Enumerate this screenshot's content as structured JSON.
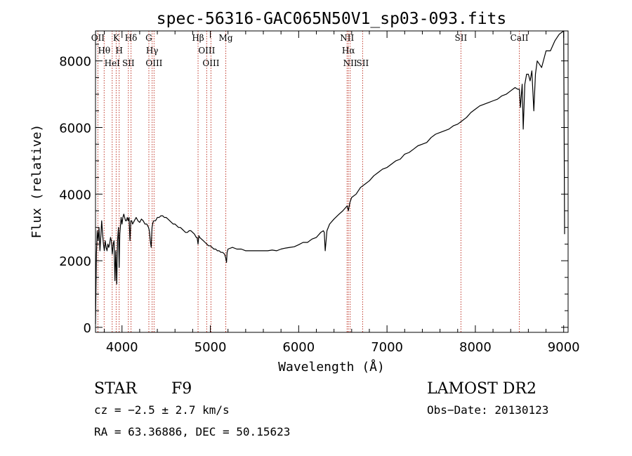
{
  "chart_data": {
    "type": "line",
    "title": "spec-56316-GAC065N50V1_sp03-093.fits",
    "xlabel": "Wavelength (Å)",
    "ylabel": "Flux (relative)",
    "xlim": [
      3700,
      9050
    ],
    "ylim": [
      -150,
      8900
    ],
    "x_ticks": [
      {
        "value": 4000,
        "label": "4000"
      },
      {
        "value": 5000,
        "label": "5000"
      },
      {
        "value": 6000,
        "label": "6000"
      },
      {
        "value": 7000,
        "label": "7000"
      },
      {
        "value": 8000,
        "label": "8000"
      },
      {
        "value": 9000,
        "label": "9000"
      }
    ],
    "y_ticks": [
      {
        "value": 0,
        "label": "0"
      },
      {
        "value": 2000,
        "label": "2000"
      },
      {
        "value": 4000,
        "label": "4000"
      },
      {
        "value": 6000,
        "label": "6000"
      },
      {
        "value": 8000,
        "label": "8000"
      }
    ],
    "series": [
      {
        "x": [
          3700,
          3710,
          3720,
          3730,
          3740,
          3750,
          3760,
          3770,
          3780,
          3790,
          3800,
          3810,
          3820,
          3830,
          3840,
          3850,
          3860,
          3870,
          3880,
          3890,
          3900,
          3910,
          3920,
          3930,
          3935,
          3940,
          3950,
          3960,
          3968,
          3975,
          3990,
          4000,
          4010,
          4020,
          4030,
          4040,
          4050,
          4060,
          4070,
          4080,
          4090,
          4100,
          4110,
          4120,
          4140,
          4160,
          4180,
          4200,
          4220,
          4240,
          4260,
          4280,
          4300,
          4310,
          4320,
          4330,
          4340,
          4350,
          4360,
          4380,
          4400,
          4420,
          4440,
          4460,
          4480,
          4500,
          4520,
          4540,
          4560,
          4580,
          4600,
          4620,
          4640,
          4660,
          4680,
          4700,
          4720,
          4740,
          4760,
          4780,
          4800,
          4820,
          4840,
          4850,
          4861,
          4870,
          4880,
          4900,
          4920,
          4940,
          4960,
          4980,
          5000,
          5020,
          5040,
          5060,
          5080,
          5100,
          5120,
          5140,
          5160,
          5172,
          5183,
          5190,
          5200,
          5250,
          5300,
          5350,
          5400,
          5450,
          5500,
          5550,
          5600,
          5650,
          5700,
          5750,
          5800,
          5850,
          5900,
          5950,
          6000,
          6050,
          6100,
          6150,
          6200,
          6250,
          6280,
          6290,
          6300,
          6320,
          6350,
          6400,
          6450,
          6500,
          6550,
          6563,
          6580,
          6600,
          6650,
          6700,
          6750,
          6800,
          6850,
          6900,
          6950,
          7000,
          7050,
          7100,
          7150,
          7200,
          7250,
          7300,
          7350,
          7400,
          7450,
          7500,
          7550,
          7600,
          7650,
          7700,
          7750,
          7800,
          7850,
          7900,
          7950,
          8000,
          8050,
          8100,
          8150,
          8200,
          8250,
          8300,
          8350,
          8400,
          8450,
          8480,
          8498,
          8510,
          8530,
          8542,
          8560,
          8580,
          8600,
          8620,
          8640,
          8662,
          8680,
          8700,
          8750,
          8800,
          8850,
          8900,
          8950,
          9000,
          9010
        ],
        "y": [
          100,
          2200,
          2900,
          2600,
          3000,
          2300,
          2700,
          3200,
          2800,
          2500,
          2300,
          2600,
          2400,
          2300,
          2500,
          2400,
          2500,
          2700,
          2600,
          2200,
          2500,
          2600,
          1400,
          2300,
          1800,
          1300,
          2600,
          3000,
          1800,
          2800,
          3300,
          3100,
          3300,
          3400,
          3300,
          3200,
          3200,
          3300,
          3200,
          3300,
          2600,
          3200,
          3200,
          3100,
          3200,
          3300,
          3200,
          3150,
          3250,
          3200,
          3100,
          3100,
          3000,
          2900,
          2600,
          2400,
          3000,
          3150,
          3200,
          3200,
          3300,
          3300,
          3350,
          3350,
          3300,
          3300,
          3250,
          3200,
          3150,
          3100,
          3100,
          3050,
          3000,
          3000,
          2950,
          2900,
          2850,
          2850,
          2900,
          2900,
          2850,
          2800,
          2700,
          2700,
          2500,
          2750,
          2700,
          2650,
          2600,
          2550,
          2500,
          2450,
          2450,
          2400,
          2350,
          2350,
          2300,
          2300,
          2250,
          2250,
          2200,
          2100,
          1950,
          2250,
          2350,
          2400,
          2350,
          2350,
          2300,
          2300,
          2300,
          2300,
          2300,
          2300,
          2320,
          2300,
          2350,
          2380,
          2400,
          2420,
          2480,
          2550,
          2550,
          2650,
          2700,
          2850,
          2900,
          2850,
          2300,
          2900,
          3100,
          3250,
          3380,
          3500,
          3650,
          3500,
          3750,
          3900,
          4000,
          4200,
          4300,
          4400,
          4550,
          4650,
          4750,
          4800,
          4900,
          5000,
          5050,
          5200,
          5250,
          5350,
          5450,
          5500,
          5550,
          5700,
          5800,
          5850,
          5900,
          5950,
          6050,
          6100,
          6200,
          6300,
          6450,
          6550,
          6650,
          6700,
          6750,
          6800,
          6850,
          6950,
          7000,
          7100,
          7200,
          7150,
          7150,
          6600,
          7300,
          5950,
          7300,
          7600,
          7600,
          7400,
          7700,
          6500,
          7600,
          8000,
          7800,
          8300,
          8300,
          8600,
          8800,
          8900,
          2800
        ]
      }
    ],
    "line_markers": [
      {
        "wavelength": 3727,
        "label": "OII"
      },
      {
        "wavelength": 3798,
        "label": "Hθ"
      },
      {
        "wavelength": 3889,
        "label": "HeI"
      },
      {
        "wavelength": 3934,
        "label": "K"
      },
      {
        "wavelength": 3968,
        "label": "H"
      },
      {
        "wavelength": 4072,
        "label": "SII"
      },
      {
        "wavelength": 4102,
        "label": "Hδ"
      },
      {
        "wavelength": 4304,
        "label": "G"
      },
      {
        "wavelength": 4341,
        "label": "Hγ"
      },
      {
        "wavelength": 4363,
        "label": "OIII"
      },
      {
        "wavelength": 4861,
        "label": "Hβ"
      },
      {
        "wavelength": 4959,
        "label": "OIII"
      },
      {
        "wavelength": 5007,
        "label": "OIII"
      },
      {
        "wavelength": 5175,
        "label": "Mg"
      },
      {
        "wavelength": 6548,
        "label": "NII"
      },
      {
        "wavelength": 6563,
        "label": "Hα"
      },
      {
        "wavelength": 6583,
        "label": "NII"
      },
      {
        "wavelength": 6724,
        "label": "SII"
      },
      {
        "wavelength": 7837,
        "label": "SII"
      },
      {
        "wavelength": 8498,
        "label": "CaII"
      }
    ]
  },
  "info": {
    "object_class": "STAR",
    "subclass": "F9",
    "survey": "LAMOST DR2",
    "redshift": "cz = −2.5 ± 2.7 km/s",
    "obs_date": "Obs−Date: 20130123",
    "coords": "RA =  63.36886, DEC =  50.15623"
  }
}
